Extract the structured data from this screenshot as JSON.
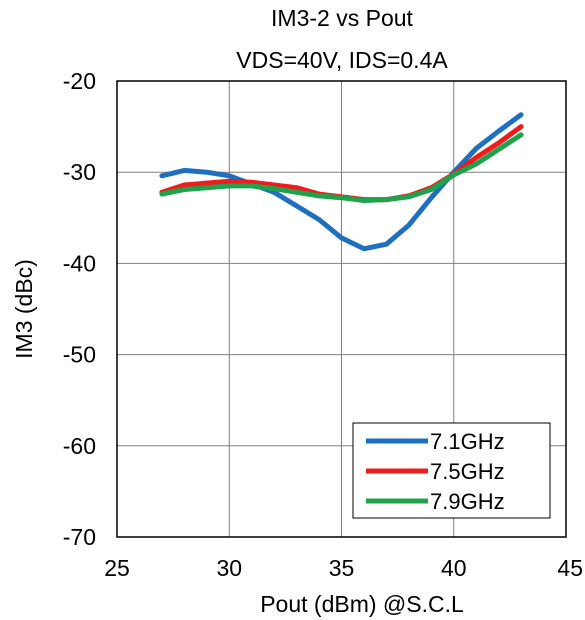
{
  "chart_data": {
    "type": "line",
    "title": "IM3-2 vs Pout",
    "subtitle": "VDS=40V, IDS=0.4A",
    "xlabel": "Pout (dBm) @S.C.L",
    "ylabel": "IM3 (dBc)",
    "xlim": [
      25,
      45
    ],
    "ylim": [
      -70,
      -20
    ],
    "xticks": [
      "25",
      "30",
      "35",
      "40",
      "45"
    ],
    "yticks": [
      "-20",
      "-30",
      "-40",
      "-50",
      "-60",
      "-70"
    ],
    "grid": true,
    "legend_position": "bottom-right",
    "x": [
      27,
      28,
      29,
      30,
      31,
      32,
      33,
      34,
      35,
      36,
      37,
      38,
      39,
      40,
      41,
      42,
      43
    ],
    "series": [
      {
        "name": "7.1GHz",
        "color": "#1f6fc0",
        "values": [
          -30.4,
          -29.8,
          -30.0,
          -30.4,
          -31.3,
          -32.2,
          -33.7,
          -35.2,
          -37.2,
          -38.4,
          -37.9,
          -35.8,
          -32.8,
          -30.0,
          -27.4,
          -25.5,
          -23.7
        ]
      },
      {
        "name": "7.5GHz",
        "color": "#ee1c1c",
        "values": [
          -32.2,
          -31.4,
          -31.2,
          -31.0,
          -31.1,
          -31.4,
          -31.7,
          -32.4,
          -32.7,
          -33.0,
          -33.0,
          -32.6,
          -31.7,
          -30.2,
          -28.4,
          -26.8,
          -25.0
        ]
      },
      {
        "name": "7.9GHz",
        "color": "#1fa34a",
        "values": [
          -32.4,
          -31.9,
          -31.7,
          -31.5,
          -31.5,
          -31.8,
          -32.2,
          -32.6,
          -32.8,
          -33.1,
          -33.0,
          -32.7,
          -31.9,
          -30.3,
          -29.1,
          -27.5,
          -25.9
        ]
      }
    ]
  }
}
